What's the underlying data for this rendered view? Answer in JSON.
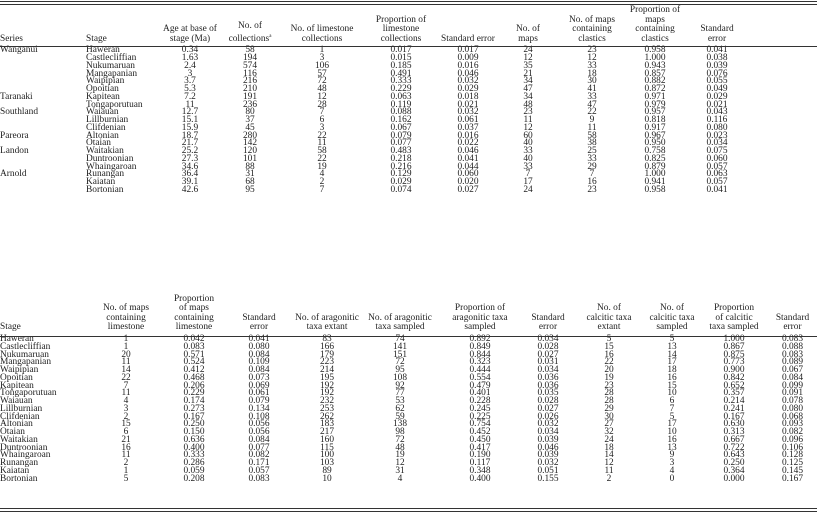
{
  "table1": {
    "headers": [
      "Series",
      "Stage",
      "Age at base of\nstage (Ma)",
      "No. of\ncollections",
      "No. of limestone\ncollections",
      "Proportion of\nlimestone\ncollections",
      "Standard error",
      "No. of\nmaps",
      "No. of maps\ncontaining\nclastics",
      "Proportion of\nmaps\ncontaining\nclastics",
      "Standard\nerror"
    ],
    "footnote_marker": "a",
    "rows": [
      [
        "Wanganui",
        "Haweran",
        "0.34",
        "58",
        "1",
        "0.017",
        "0.017",
        "24",
        "23",
        "0.958",
        "0.041"
      ],
      [
        "",
        "Castlecliffian",
        "1.63",
        "194",
        "3",
        "0.015",
        "0.009",
        "12",
        "12",
        "1.000",
        "0.038"
      ],
      [
        "",
        "Nukumaruan",
        "2.4",
        "574",
        "106",
        "0.185",
        "0.016",
        "35",
        "33",
        "0.943",
        "0.039"
      ],
      [
        "",
        "Mangapanian",
        "3",
        "116",
        "57",
        "0.491",
        "0.046",
        "21",
        "18",
        "0.857",
        "0.076"
      ],
      [
        "",
        "Waipipian",
        "3.7",
        "216",
        "72",
        "0.333",
        "0.032",
        "34",
        "30",
        "0.882",
        "0.055"
      ],
      [
        "",
        "Opoitian",
        "5.3",
        "210",
        "48",
        "0.229",
        "0.029",
        "47",
        "41",
        "0.872",
        "0.049"
      ],
      [
        "Taranaki",
        "Kapitean",
        "7.2",
        "191",
        "12",
        "0.063",
        "0.018",
        "34",
        "33",
        "0.971",
        "0.029"
      ],
      [
        "",
        "Tongaporutuan",
        "11",
        "236",
        "28",
        "0.119",
        "0.021",
        "48",
        "47",
        "0.979",
        "0.021"
      ],
      [
        "Southland",
        "Waiauan",
        "12.7",
        "80",
        "7",
        "0.088",
        "0.032",
        "23",
        "22",
        "0.957",
        "0.043"
      ],
      [
        "",
        "Lillburnian",
        "15.1",
        "37",
        "6",
        "0.162",
        "0.061",
        "11",
        "9",
        "0.818",
        "0.116"
      ],
      [
        "",
        "Clifdenian",
        "15.9",
        "45",
        "3",
        "0.067",
        "0.037",
        "12",
        "11",
        "0.917",
        "0.080"
      ],
      [
        "Pareora",
        "Altonian",
        "18.7",
        "280",
        "22",
        "0.079",
        "0.016",
        "60",
        "58",
        "0.967",
        "0.023"
      ],
      [
        "",
        "Otaian",
        "21.7",
        "142",
        "11",
        "0.077",
        "0.022",
        "40",
        "38",
        "0.950",
        "0.034"
      ],
      [
        "Landon",
        "Waitakian",
        "25.2",
        "120",
        "58",
        "0.483",
        "0.046",
        "33",
        "25",
        "0.758",
        "0.075"
      ],
      [
        "",
        "Duntroonian",
        "27.3",
        "101",
        "22",
        "0.218",
        "0.041",
        "40",
        "33",
        "0.825",
        "0.060"
      ],
      [
        "",
        "Whaingaroan",
        "34.6",
        "88",
        "19",
        "0.216",
        "0.044",
        "33",
        "29",
        "0.879",
        "0.057"
      ],
      [
        "Arnold",
        "Runangan",
        "36.4",
        "31",
        "4",
        "0.129",
        "0.060",
        "7",
        "7",
        "1.000",
        "0.063"
      ],
      [
        "",
        "Kaiatan",
        "39.1",
        "68",
        "2",
        "0.029",
        "0.020",
        "17",
        "16",
        "0.941",
        "0.057"
      ],
      [
        "",
        "Bortonian",
        "42.6",
        "95",
        "7",
        "0.074",
        "0.027",
        "24",
        "23",
        "0.958",
        "0.041"
      ]
    ]
  },
  "table2": {
    "headers": [
      "Stage",
      "No. of maps\ncontaining\nlimestone",
      "Proportion\nof maps\ncontaining\nlimestone",
      "Standard\nerror",
      "No. of aragonitic\ntaxa extant",
      "No. of aragonitic\ntaxa sampled",
      "Proportion of\naragonitic taxa\nsampled",
      "Standard\nerror",
      "No. of\ncalcitic taxa\nextant",
      "No. of\ncalcitic taxa\nsampled",
      "Proportion\nof calcitic\ntaxa sampled",
      "Standard\nerror"
    ],
    "rows": [
      [
        "Haweran",
        "1",
        "0.042",
        "0.041",
        "83",
        "74",
        "0.892",
        "0.034",
        "5",
        "5",
        "1.000",
        "0.083"
      ],
      [
        "Castlecliffian",
        "1",
        "0.083",
        "0.080",
        "166",
        "141",
        "0.849",
        "0.028",
        "15",
        "13",
        "0.867",
        "0.088"
      ],
      [
        "Nukumaruan",
        "20",
        "0.571",
        "0.084",
        "179",
        "151",
        "0.844",
        "0.027",
        "16",
        "14",
        "0.875",
        "0.083"
      ],
      [
        "Mangapanian",
        "11",
        "0.524",
        "0.109",
        "223",
        "72",
        "0.323",
        "0.031",
        "22",
        "17",
        "0.773",
        "0.089"
      ],
      [
        "Waipipian",
        "14",
        "0.412",
        "0.084",
        "214",
        "95",
        "0.444",
        "0.034",
        "20",
        "18",
        "0.900",
        "0.067"
      ],
      [
        "Opoitian",
        "22",
        "0.468",
        "0.073",
        "195",
        "108",
        "0.554",
        "0.036",
        "19",
        "16",
        "0.842",
        "0.084"
      ],
      [
        "Kapitean",
        "7",
        "0.206",
        "0.069",
        "192",
        "92",
        "0.479",
        "0.036",
        "23",
        "15",
        "0.652",
        "0.099"
      ],
      [
        "Tongaporutuan",
        "11",
        "0.229",
        "0.061",
        "192",
        "77",
        "0.401",
        "0.035",
        "28",
        "10",
        "0.357",
        "0.091"
      ],
      [
        "Waiauan",
        "4",
        "0.174",
        "0.079",
        "232",
        "53",
        "0.228",
        "0.028",
        "28",
        "6",
        "0.214",
        "0.078"
      ],
      [
        "Lillburnian",
        "3",
        "0.273",
        "0.134",
        "253",
        "62",
        "0.245",
        "0.027",
        "29",
        "7",
        "0.241",
        "0.080"
      ],
      [
        "Clifdenian",
        "2",
        "0.167",
        "0.108",
        "262",
        "59",
        "0.225",
        "0.026",
        "30",
        "5",
        "0.167",
        "0.068"
      ],
      [
        "Altonian",
        "15",
        "0.250",
        "0.056",
        "183",
        "138",
        "0.754",
        "0.032",
        "27",
        "17",
        "0.630",
        "0.093"
      ],
      [
        "Otaian",
        "6",
        "0.150",
        "0.056",
        "217",
        "98",
        "0.452",
        "0.034",
        "32",
        "10",
        "0.313",
        "0.082"
      ],
      [
        "Waitakian",
        "21",
        "0.636",
        "0.084",
        "160",
        "72",
        "0.450",
        "0.039",
        "24",
        "16",
        "0.667",
        "0.096"
      ],
      [
        "Duntroonian",
        "16",
        "0.400",
        "0.077",
        "115",
        "48",
        "0.417",
        "0.046",
        "18",
        "13",
        "0.722",
        "0.106"
      ],
      [
        "Whaingaroan",
        "11",
        "0.333",
        "0.082",
        "100",
        "19",
        "0.190",
        "0.039",
        "14",
        "9",
        "0.643",
        "0.128"
      ],
      [
        "Runangan",
        "2",
        "0.286",
        "0.171",
        "103",
        "12",
        "0.117",
        "0.032",
        "12",
        "3",
        "0.250",
        "0.125"
      ],
      [
        "Kaiatan",
        "1",
        "0.059",
        "0.057",
        "89",
        "31",
        "0.348",
        "0.051",
        "11",
        "4",
        "0.364",
        "0.145"
      ],
      [
        "Bortonian",
        "5",
        "0.208",
        "0.083",
        "10",
        "4",
        "0.400",
        "0.155",
        "2",
        "0",
        "0.000",
        "0.167"
      ]
    ]
  }
}
